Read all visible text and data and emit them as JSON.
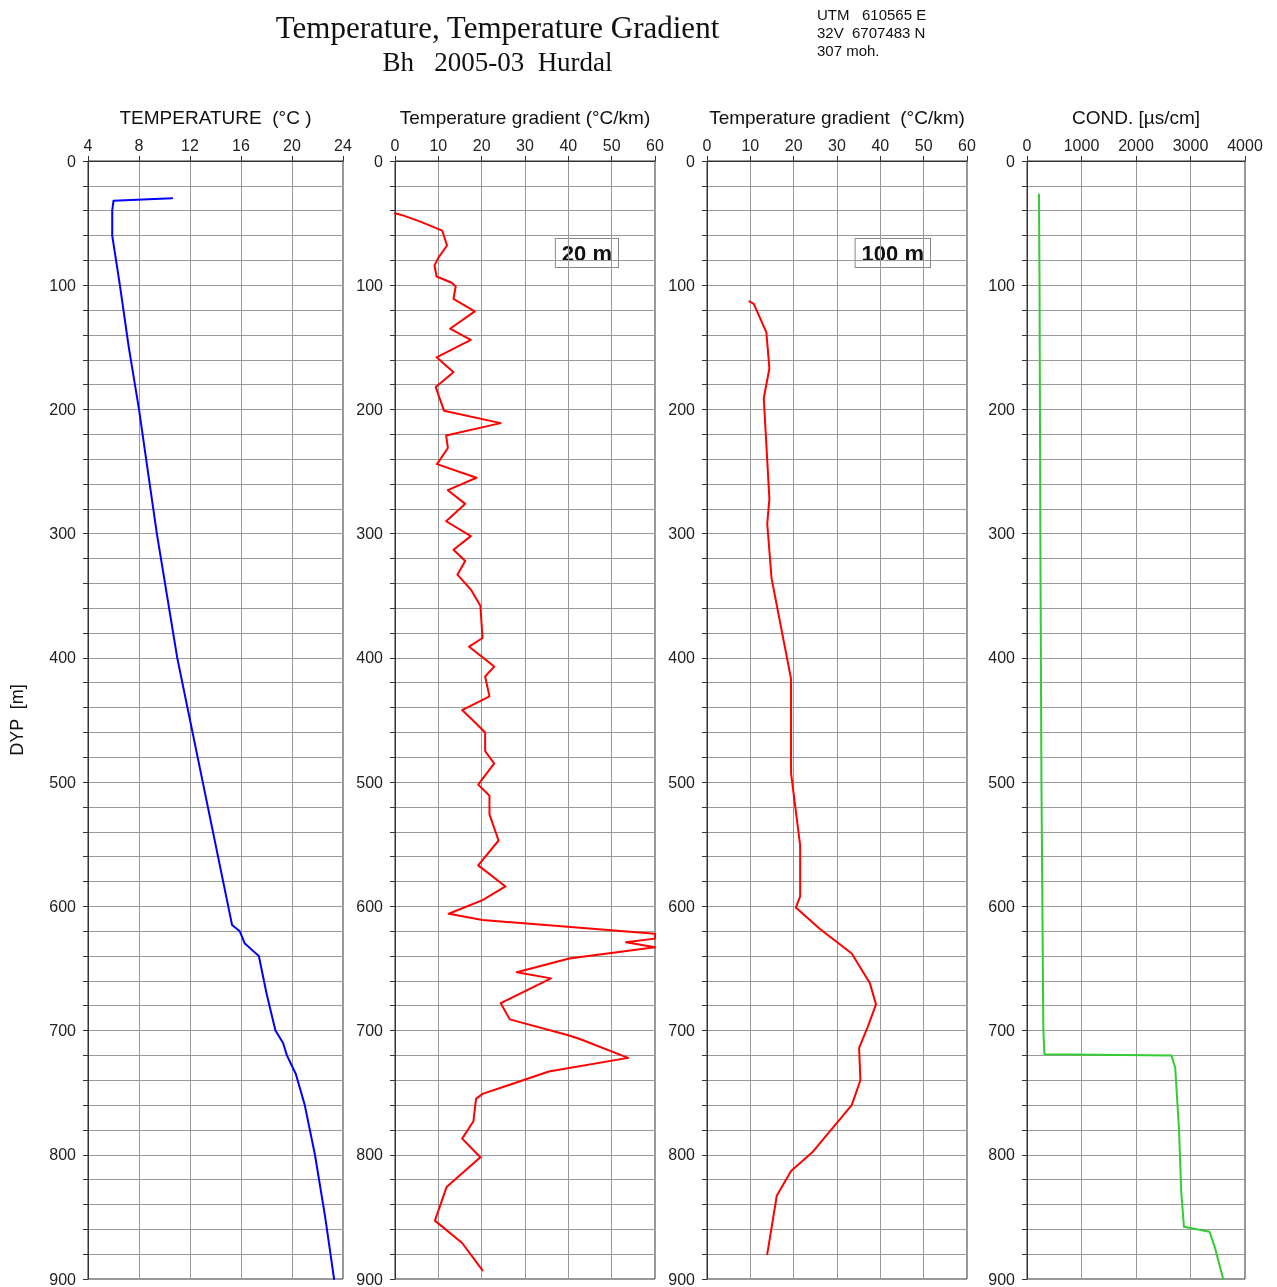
{
  "chart_data": [
    {
      "type": "line",
      "xlabel": "TEMPERATURE  (°C )",
      "ylabel": "DYP  [m]",
      "xlim": [
        4,
        24
      ],
      "xticks": [
        4,
        8,
        12,
        16,
        20,
        24
      ],
      "ylim": [
        900,
        0
      ],
      "yticks": [
        0,
        {
          "value": 20,
          "label": null
        },
        {
          "value": 40,
          "label": null
        },
        {
          "value": 60,
          "label": null
        },
        {
          "value": 80,
          "label": null
        },
        100,
        {
          "value": 120,
          "label": null
        },
        {
          "value": 140,
          "label": null
        },
        {
          "value": 160,
          "label": null
        },
        {
          "value": 180,
          "label": null
        },
        200,
        {
          "value": 220,
          "label": null
        },
        {
          "value": 240,
          "label": null
        },
        {
          "value": 260,
          "label": null
        },
        {
          "value": 280,
          "label": null
        },
        300,
        {
          "value": 320,
          "label": null
        },
        {
          "value": 340,
          "label": null
        },
        {
          "value": 360,
          "label": null
        },
        {
          "value": 380,
          "label": null
        },
        400,
        {
          "value": 420,
          "label": null
        },
        {
          "value": 440,
          "label": null
        },
        {
          "value": 460,
          "label": null
        },
        {
          "value": 480,
          "label": null
        },
        500,
        {
          "value": 520,
          "label": null
        },
        {
          "value": 540,
          "label": null
        },
        {
          "value": 560,
          "label": null
        },
        {
          "value": 580,
          "label": null
        },
        600,
        {
          "value": 620,
          "label": null
        },
        {
          "value": 640,
          "label": null
        },
        {
          "value": 660,
          "label": null
        },
        {
          "value": 680,
          "label": null
        },
        700,
        {
          "value": 720,
          "label": null
        },
        {
          "value": 740,
          "label": null
        },
        {
          "value": 760,
          "label": null
        },
        {
          "value": 780,
          "label": null
        },
        800,
        {
          "value": 820,
          "label": null
        },
        {
          "value": 840,
          "label": null
        },
        {
          "value": 860,
          "label": null
        },
        {
          "value": 880,
          "label": null
        },
        900
      ],
      "grid": true,
      "marker": "none",
      "line_style": "solid",
      "series": [
        {
          "color": "#0000ff",
          "x": [
            10.6,
            6.0,
            5.9,
            5.9,
            6.5,
            7.2,
            8.0,
            8.7,
            9.4,
            10.2,
            11.0,
            12.0,
            13.0,
            14.0,
            15.0,
            15.3,
            15.9,
            16.3,
            17.4,
            18.0,
            18.7,
            19.3,
            19.6,
            20.3,
            21.0,
            21.8,
            22.6,
            23.3
          ],
          "values": [
            30,
            32,
            40,
            60,
            100,
            150,
            200,
            250,
            300,
            350,
            400,
            450,
            500,
            550,
            600,
            615,
            620,
            630,
            640,
            670,
            700,
            710,
            720,
            735,
            760,
            800,
            850,
            900
          ]
        }
      ]
    },
    {
      "type": "line",
      "title": "Temperature, Temperature Gradient",
      "subtitle": "Bh   2005-03  Hurdal",
      "annotations": [
        "20 m"
      ],
      "xlabel": "Temperature gradient (°C/km)",
      "xlim": [
        0,
        60
      ],
      "xticks": [
        0,
        10,
        20,
        30,
        40,
        50,
        60
      ],
      "ylim": [
        900,
        0
      ],
      "yticks": [
        0,
        {
          "value": 20,
          "label": null
        },
        {
          "value": 40,
          "label": null
        },
        {
          "value": 60,
          "label": null
        },
        {
          "value": 80,
          "label": null
        },
        100,
        {
          "value": 120,
          "label": null
        },
        {
          "value": 140,
          "label": null
        },
        {
          "value": 160,
          "label": null
        },
        {
          "value": 180,
          "label": null
        },
        200,
        {
          "value": 220,
          "label": null
        },
        {
          "value": 240,
          "label": null
        },
        {
          "value": 260,
          "label": null
        },
        {
          "value": 280,
          "label": null
        },
        300,
        {
          "value": 320,
          "label": null
        },
        {
          "value": 340,
          "label": null
        },
        {
          "value": 360,
          "label": null
        },
        {
          "value": 380,
          "label": null
        },
        400,
        {
          "value": 420,
          "label": null
        },
        {
          "value": 440,
          "label": null
        },
        {
          "value": 460,
          "label": null
        },
        {
          "value": 480,
          "label": null
        },
        500,
        {
          "value": 520,
          "label": null
        },
        {
          "value": 540,
          "label": null
        },
        {
          "value": 560,
          "label": null
        },
        {
          "value": 580,
          "label": null
        },
        600,
        {
          "value": 620,
          "label": null
        },
        {
          "value": 640,
          "label": null
        },
        {
          "value": 660,
          "label": null
        },
        {
          "value": 680,
          "label": null
        },
        700,
        {
          "value": 720,
          "label": null
        },
        {
          "value": 740,
          "label": null
        },
        {
          "value": 760,
          "label": null
        },
        {
          "value": 780,
          "label": null
        },
        800,
        {
          "value": 820,
          "label": null
        },
        {
          "value": 840,
          "label": null
        },
        {
          "value": 860,
          "label": null
        },
        {
          "value": 880,
          "label": null
        },
        900
      ],
      "grid": true,
      "marker": "none",
      "line_style": "solid",
      "series": [
        {
          "color": "#ff0000",
          "x": [
            0,
            2,
            6,
            10.9,
            12.0,
            10.0,
            9.1,
            9.6,
            13.1,
            14.0,
            13.5,
            18.4,
            12.7,
            17.5,
            9.6,
            13.5,
            9.4,
            11.3,
            24.4,
            11.8,
            12.2,
            9.7,
            18.8,
            12.2,
            16.2,
            11.8,
            17.5,
            13.5,
            16.2,
            14.4,
            17.5,
            19.7,
            20.2,
            17.1,
            22.9,
            20.8,
            21.8,
            15.5,
            17.6,
            20.8,
            20.8,
            22.9,
            19.2,
            21.8,
            21.8,
            23.9,
            19.2,
            25.5,
            20.2,
            12.4,
            20.2,
            60,
            60,
            53.3,
            60,
            40.2,
            28.1,
            36.0,
            24.4,
            26.5,
            40.2,
            42.8,
            53.8,
            35.5,
            20.2,
            18.7,
            18.1,
            15.5,
            19.7,
            11.9,
            9.2,
            15.5,
            20.2
          ],
          "values": [
            42,
            44,
            49,
            56,
            68,
            78,
            84,
            93,
            98,
            101,
            111,
            121,
            135,
            144,
            158,
            170,
            182,
            201,
            211,
            221,
            231,
            244,
            255,
            265,
            276,
            290,
            302,
            313,
            322,
            333,
            345,
            358,
            384,
            391,
            407,
            415,
            431,
            442,
            449,
            460,
            475,
            485,
            502,
            511,
            526,
            547,
            567,
            584,
            595,
            606,
            611,
            622,
            626,
            629,
            633,
            642,
            653,
            658,
            678,
            691,
            704,
            707,
            722,
            733,
            751,
            755,
            773,
            787,
            802,
            826,
            853,
            871,
            893
          ]
        }
      ]
    },
    {
      "type": "line",
      "annotations": [
        "UTM   610565 E",
        "32V  6707483 N",
        "307 moh.",
        "100 m"
      ],
      "xlabel": "Temperature gradient  (°C/km)",
      "xlim": [
        0,
        60
      ],
      "xticks": [
        0,
        10,
        20,
        30,
        40,
        50,
        60
      ],
      "ylim": [
        900,
        0
      ],
      "yticks": [
        0,
        {
          "value": 20,
          "label": null
        },
        {
          "value": 40,
          "label": null
        },
        {
          "value": 60,
          "label": null
        },
        {
          "value": 80,
          "label": null
        },
        100,
        {
          "value": 120,
          "label": null
        },
        {
          "value": 140,
          "label": null
        },
        {
          "value": 160,
          "label": null
        },
        {
          "value": 180,
          "label": null
        },
        200,
        {
          "value": 220,
          "label": null
        },
        {
          "value": 240,
          "label": null
        },
        {
          "value": 260,
          "label": null
        },
        {
          "value": 280,
          "label": null
        },
        300,
        {
          "value": 320,
          "label": null
        },
        {
          "value": 340,
          "label": null
        },
        {
          "value": 360,
          "label": null
        },
        {
          "value": 380,
          "label": null
        },
        400,
        {
          "value": 420,
          "label": null
        },
        {
          "value": 440,
          "label": null
        },
        {
          "value": 460,
          "label": null
        },
        {
          "value": 480,
          "label": null
        },
        500,
        {
          "value": 520,
          "label": null
        },
        {
          "value": 540,
          "label": null
        },
        {
          "value": 560,
          "label": null
        },
        {
          "value": 580,
          "label": null
        },
        600,
        {
          "value": 620,
          "label": null
        },
        {
          "value": 640,
          "label": null
        },
        {
          "value": 660,
          "label": null
        },
        {
          "value": 680,
          "label": null
        },
        700,
        {
          "value": 720,
          "label": null
        },
        {
          "value": 740,
          "label": null
        },
        {
          "value": 760,
          "label": null
        },
        {
          "value": 780,
          "label": null
        },
        800,
        {
          "value": 820,
          "label": null
        },
        {
          "value": 840,
          "label": null
        },
        {
          "value": 860,
          "label": null
        },
        {
          "value": 880,
          "label": null
        },
        900
      ],
      "grid": true,
      "marker": "none",
      "line_style": "solid",
      "series": [
        {
          "color": "#ff0000",
          "x": [
            9.8,
            10.8,
            13.7,
            14.4,
            13.1,
            14.4,
            13.9,
            14.9,
            19.4,
            19.4,
            21.5,
            21.5,
            20.5,
            26.0,
            33.4,
            37.6,
            39.0,
            37.1,
            35.1,
            35.4,
            33.4,
            24.3,
            19.4,
            16.1,
            13.9
          ],
          "values": [
            113,
            115,
            138,
            167,
            191,
            272,
            292,
            336,
            417,
            493,
            551,
            592,
            601,
            618,
            638,
            662,
            679,
            697,
            714,
            740,
            760,
            798,
            813,
            833,
            880
          ]
        }
      ]
    },
    {
      "type": "line",
      "xlabel": "COND. [µs/cm]",
      "xlim": [
        0,
        4000
      ],
      "xticks": [
        0,
        1000,
        2000,
        3000,
        4000
      ],
      "ylim": [
        900,
        0
      ],
      "yticks": [
        0,
        {
          "value": 20,
          "label": null
        },
        {
          "value": 40,
          "label": null
        },
        {
          "value": 60,
          "label": null
        },
        {
          "value": 80,
          "label": null
        },
        100,
        {
          "value": 120,
          "label": null
        },
        {
          "value": 140,
          "label": null
        },
        {
          "value": 160,
          "label": null
        },
        {
          "value": 180,
          "label": null
        },
        200,
        {
          "value": 220,
          "label": null
        },
        {
          "value": 240,
          "label": null
        },
        {
          "value": 260,
          "label": null
        },
        {
          "value": 280,
          "label": null
        },
        300,
        {
          "value": 320,
          "label": null
        },
        {
          "value": 340,
          "label": null
        },
        {
          "value": 360,
          "label": null
        },
        {
          "value": 380,
          "label": null
        },
        400,
        {
          "value": 420,
          "label": null
        },
        {
          "value": 440,
          "label": null
        },
        {
          "value": 460,
          "label": null
        },
        {
          "value": 480,
          "label": null
        },
        500,
        {
          "value": 520,
          "label": null
        },
        {
          "value": 540,
          "label": null
        },
        {
          "value": 560,
          "label": null
        },
        {
          "value": 580,
          "label": null
        },
        600,
        {
          "value": 620,
          "label": null
        },
        {
          "value": 640,
          "label": null
        },
        {
          "value": 660,
          "label": null
        },
        {
          "value": 680,
          "label": null
        },
        700,
        {
          "value": 720,
          "label": null
        },
        {
          "value": 740,
          "label": null
        },
        {
          "value": 760,
          "label": null
        },
        {
          "value": 780,
          "label": null
        },
        800,
        {
          "value": 820,
          "label": null
        },
        {
          "value": 840,
          "label": null
        },
        {
          "value": 860,
          "label": null
        },
        {
          "value": 880,
          "label": null
        },
        900
      ],
      "grid": true,
      "marker": "none",
      "line_style": "solid",
      "series": [
        {
          "color": "#33cc33",
          "x": [
            220,
            230,
            245,
            265,
            300,
            320,
            2650,
            2720,
            2790,
            2830,
            2880,
            3350,
            3450,
            3600
          ],
          "values": [
            27,
            100,
            300,
            500,
            700,
            719,
            720,
            730,
            780,
            830,
            858,
            862,
            875,
            900
          ]
        }
      ]
    }
  ]
}
